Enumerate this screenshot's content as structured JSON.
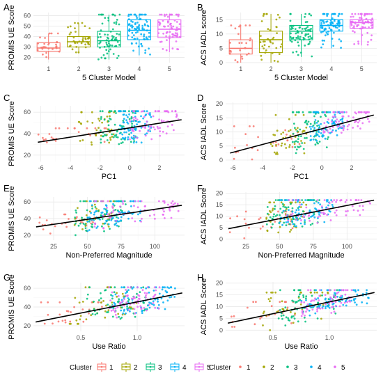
{
  "colors": {
    "1": "#F8766D",
    "2": "#A3A500",
    "3": "#00BF7D",
    "4": "#00B0F6",
    "5": "#E76BF3",
    "regression": "#000000"
  },
  "legends": [
    {
      "title": "Cluster",
      "style": "boxplot",
      "items": [
        "1",
        "2",
        "3",
        "4",
        "5"
      ]
    },
    {
      "title": "Cluster",
      "style": "point",
      "items": [
        "1",
        "2",
        "3",
        "4",
        "5"
      ]
    }
  ],
  "chart_data": [
    {
      "panel": "A",
      "type": "boxplot",
      "xlabel": "5 Cluster Model",
      "ylabel": "PROMIS UE Score",
      "categories": [
        "1",
        "2",
        "3",
        "4",
        "5"
      ],
      "ylim": [
        15,
        63
      ],
      "yticks": [
        20,
        30,
        40,
        50,
        60
      ],
      "boxes": [
        {
          "cluster": "1",
          "q1": 26,
          "median": 29,
          "q3": 34,
          "whisker_low": 18,
          "whisker_high": 43
        },
        {
          "cluster": "2",
          "q1": 30,
          "median": 35,
          "q3": 40,
          "whisker_low": 24,
          "whisker_high": 53
        },
        {
          "cluster": "3",
          "q1": 30,
          "median": 36,
          "q3": 45,
          "whisker_low": 18,
          "whisker_high": 61
        },
        {
          "cluster": "4",
          "q1": 37,
          "median": 46,
          "q3": 56,
          "whisker_low": 22,
          "whisker_high": 61
        },
        {
          "cluster": "5",
          "q1": 39,
          "median": 47,
          "q3": 56,
          "whisker_low": 25,
          "whisker_high": 61
        }
      ],
      "jitter_counts": [
        26,
        40,
        70,
        85,
        70
      ]
    },
    {
      "panel": "B",
      "type": "boxplot",
      "xlabel": "5 Cluster Model",
      "ylabel": "ACS IADL score",
      "categories": [
        "1",
        "2",
        "3",
        "4",
        "5"
      ],
      "ylim": [
        0,
        17.5
      ],
      "yticks": [
        0,
        5,
        10,
        15
      ],
      "boxes": [
        {
          "cluster": "1",
          "q1": 3,
          "median": 5,
          "q3": 8,
          "whisker_low": 0,
          "whisker_high": 13
        },
        {
          "cluster": "2",
          "q1": 3.5,
          "median": 8,
          "q3": 11,
          "whisker_low": 0,
          "whisker_high": 17
        },
        {
          "cluster": "3",
          "q1": 8,
          "median": 11,
          "q3": 13,
          "whisker_low": 2,
          "whisker_high": 17
        },
        {
          "cluster": "4",
          "q1": 11,
          "median": 13,
          "q3": 15,
          "whisker_low": 5,
          "whisker_high": 17
        },
        {
          "cluster": "5",
          "q1": 12,
          "median": 14,
          "q3": 15,
          "whisker_low": 6,
          "whisker_high": 17
        }
      ],
      "jitter_counts": [
        26,
        40,
        70,
        85,
        70
      ]
    },
    {
      "panel": "C",
      "type": "scatter",
      "xlabel": "PC1",
      "ylabel": "PROMIS UE Score",
      "xlim": [
        -6.5,
        3.7
      ],
      "ylim": [
        14,
        66
      ],
      "xticks": [
        -6,
        -4,
        -2,
        0,
        2
      ],
      "yticks": [
        20,
        40,
        60
      ],
      "regression": {
        "x": [
          -6.2,
          3.5
        ],
        "y": [
          32,
          53
        ]
      },
      "clusters": [
        {
          "cluster": "1",
          "xrange": [
            -6.2,
            -1.5
          ],
          "yrange": [
            20,
            45
          ],
          "n": 26
        },
        {
          "cluster": "2",
          "xrange": [
            -3.5,
            -1.0
          ],
          "yrange": [
            25,
            60
          ],
          "n": 40
        },
        {
          "cluster": "3",
          "xrange": [
            -2.0,
            0.5
          ],
          "yrange": [
            18,
            61
          ],
          "n": 70
        },
        {
          "cluster": "4",
          "xrange": [
            -0.8,
            1.5
          ],
          "yrange": [
            25,
            61
          ],
          "n": 85
        },
        {
          "cluster": "5",
          "xrange": [
            0.0,
            3.3
          ],
          "yrange": [
            25,
            61
          ],
          "n": 70
        }
      ]
    },
    {
      "panel": "D",
      "type": "scatter",
      "xlabel": "PC1",
      "ylabel": "ACS IADL Score",
      "xlim": [
        -6.5,
        3.7
      ],
      "ylim": [
        -0.5,
        20.5
      ],
      "xticks": [
        -6,
        -4,
        -2,
        0,
        2
      ],
      "yticks": [
        0,
        5,
        10,
        15,
        20
      ],
      "regression": {
        "x": [
          -6.2,
          3.5
        ],
        "y": [
          2.5,
          16
        ]
      },
      "clusters": [
        {
          "cluster": "1",
          "xrange": [
            -6.2,
            -1.5
          ],
          "yrange": [
            0,
            12
          ],
          "n": 26
        },
        {
          "cluster": "2",
          "xrange": [
            -3.5,
            -1.0
          ],
          "yrange": [
            0,
            16
          ],
          "n": 40
        },
        {
          "cluster": "3",
          "xrange": [
            -2.0,
            0.5
          ],
          "yrange": [
            2,
            17
          ],
          "n": 70
        },
        {
          "cluster": "4",
          "xrange": [
            -0.8,
            1.5
          ],
          "yrange": [
            6,
            17
          ],
          "n": 85
        },
        {
          "cluster": "5",
          "xrange": [
            0.0,
            3.3
          ],
          "yrange": [
            6,
            17
          ],
          "n": 70
        }
      ]
    },
    {
      "panel": "E",
      "type": "scatter",
      "xlabel": "Non-Preferred Magnitude",
      "ylabel": "PROMIS UE Score",
      "xlim": [
        10,
        122
      ],
      "ylim": [
        14,
        66
      ],
      "xticks": [
        25,
        50,
        75,
        100
      ],
      "yticks": [
        20,
        40,
        60
      ],
      "regression": {
        "x": [
          12,
          120
        ],
        "y": [
          30,
          56
        ]
      },
      "clusters": [
        {
          "cluster": "1",
          "xrange": [
            12,
            60
          ],
          "yrange": [
            18,
            45
          ],
          "n": 26
        },
        {
          "cluster": "2",
          "xrange": [
            40,
            70
          ],
          "yrange": [
            22,
            61
          ],
          "n": 40
        },
        {
          "cluster": "3",
          "xrange": [
            40,
            80
          ],
          "yrange": [
            18,
            61
          ],
          "n": 70
        },
        {
          "cluster": "4",
          "xrange": [
            50,
            90
          ],
          "yrange": [
            25,
            61
          ],
          "n": 85
        },
        {
          "cluster": "5",
          "xrange": [
            55,
            118
          ],
          "yrange": [
            25,
            61
          ],
          "n": 70
        }
      ]
    },
    {
      "panel": "F",
      "type": "scatter",
      "xlabel": "Non-Preferred Magnitude",
      "ylabel": "ACS IADL Score",
      "xlim": [
        10,
        122
      ],
      "ylim": [
        -0.5,
        20.5
      ],
      "xticks": [
        25,
        50,
        75,
        100
      ],
      "yticks": [
        0,
        5,
        10,
        15,
        20
      ],
      "regression": {
        "x": [
          12,
          120
        ],
        "y": [
          4.5,
          17
        ]
      },
      "clusters": [
        {
          "cluster": "1",
          "xrange": [
            12,
            60
          ],
          "yrange": [
            0,
            12
          ],
          "n": 26
        },
        {
          "cluster": "2",
          "xrange": [
            40,
            70
          ],
          "yrange": [
            0,
            16
          ],
          "n": 40
        },
        {
          "cluster": "3",
          "xrange": [
            40,
            80
          ],
          "yrange": [
            2,
            17
          ],
          "n": 70
        },
        {
          "cluster": "4",
          "xrange": [
            50,
            90
          ],
          "yrange": [
            5,
            17
          ],
          "n": 85
        },
        {
          "cluster": "5",
          "xrange": [
            55,
            118
          ],
          "yrange": [
            6,
            17
          ],
          "n": 70
        }
      ]
    },
    {
      "panel": "G",
      "type": "scatter",
      "xlabel": "Use Ratio",
      "ylabel": "PROMIS UE Score",
      "xlim": [
        0.08,
        1.42
      ],
      "ylim": [
        14,
        66
      ],
      "xticks": [
        0.5,
        1.0
      ],
      "yticks": [
        20,
        40,
        60
      ],
      "regression": {
        "x": [
          0.1,
          1.4
        ],
        "y": [
          24,
          55
        ]
      },
      "clusters": [
        {
          "cluster": "1",
          "xrange": [
            0.12,
            0.7
          ],
          "yrange": [
            18,
            45
          ],
          "n": 26
        },
        {
          "cluster": "2",
          "xrange": [
            0.4,
            1.0
          ],
          "yrange": [
            22,
            61
          ],
          "n": 40
        },
        {
          "cluster": "3",
          "xrange": [
            0.55,
            1.1
          ],
          "yrange": [
            18,
            61
          ],
          "n": 70
        },
        {
          "cluster": "4",
          "xrange": [
            0.75,
            1.35
          ],
          "yrange": [
            25,
            61
          ],
          "n": 85
        },
        {
          "cluster": "5",
          "xrange": [
            0.75,
            1.2
          ],
          "yrange": [
            25,
            61
          ],
          "n": 70
        }
      ]
    },
    {
      "panel": "H",
      "type": "scatter",
      "xlabel": "Use Ratio",
      "ylabel": "ACS IADL Score",
      "xlim": [
        0.08,
        1.42
      ],
      "ylim": [
        -0.5,
        20.5
      ],
      "xticks": [
        0.5,
        1.0
      ],
      "yticks": [
        0,
        5,
        10,
        15,
        20
      ],
      "regression": {
        "x": [
          0.1,
          1.4
        ],
        "y": [
          3,
          16
        ]
      },
      "clusters": [
        {
          "cluster": "1",
          "xrange": [
            0.12,
            0.7
          ],
          "yrange": [
            0,
            12
          ],
          "n": 26
        },
        {
          "cluster": "2",
          "xrange": [
            0.4,
            1.0
          ],
          "yrange": [
            0,
            16
          ],
          "n": 40
        },
        {
          "cluster": "3",
          "xrange": [
            0.55,
            1.1
          ],
          "yrange": [
            2,
            17
          ],
          "n": 70
        },
        {
          "cluster": "4",
          "xrange": [
            0.75,
            1.35
          ],
          "yrange": [
            6,
            17
          ],
          "n": 85
        },
        {
          "cluster": "5",
          "xrange": [
            0.75,
            1.2
          ],
          "yrange": [
            6,
            17
          ],
          "n": 70
        }
      ]
    }
  ]
}
